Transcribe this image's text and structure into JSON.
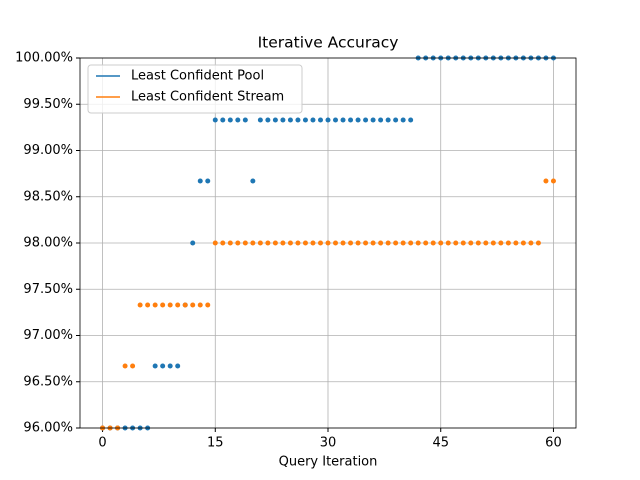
{
  "chart_data": {
    "type": "line",
    "title": "Iterative Accuracy",
    "xlabel": "Query Iteration",
    "x": [
      0,
      1,
      2,
      3,
      4,
      5,
      6,
      7,
      8,
      9,
      10,
      11,
      12,
      13,
      14,
      15,
      16,
      17,
      18,
      19,
      20,
      21,
      22,
      23,
      24,
      25,
      26,
      27,
      28,
      29,
      30,
      31,
      32,
      33,
      34,
      35,
      36,
      37,
      38,
      39,
      40,
      41,
      42,
      43,
      44,
      45,
      46,
      47,
      48,
      49,
      50,
      51,
      52,
      53,
      54,
      55,
      56,
      57,
      58,
      59,
      60
    ],
    "series": [
      {
        "name": "Least Confident Pool",
        "color": "#1f77b4",
        "values": [
          96,
          96,
          96,
          96,
          96,
          96,
          96,
          96.67,
          96.67,
          96.67,
          96.67,
          97.33,
          98,
          98.67,
          98.67,
          99.33,
          99.33,
          99.33,
          99.33,
          99.33,
          98.67,
          99.33,
          99.33,
          99.33,
          99.33,
          99.33,
          99.33,
          99.33,
          99.33,
          99.33,
          99.33,
          99.33,
          99.33,
          99.33,
          99.33,
          99.33,
          99.33,
          99.33,
          99.33,
          99.33,
          99.33,
          99.33,
          100,
          100,
          100,
          100,
          100,
          100,
          100,
          100,
          100,
          100,
          100,
          100,
          100,
          100,
          100,
          100,
          100,
          100,
          100
        ]
      },
      {
        "name": "Least Confident Stream",
        "color": "#ff7f0e",
        "values": [
          96,
          96,
          96,
          96.67,
          96.67,
          97.33,
          97.33,
          97.33,
          97.33,
          97.33,
          97.33,
          97.33,
          97.33,
          97.33,
          97.33,
          98,
          98,
          98,
          98,
          98,
          98,
          98,
          98,
          98,
          98,
          98,
          98,
          98,
          98,
          98,
          98,
          98,
          98,
          98,
          98,
          98,
          98,
          98,
          98,
          98,
          98,
          98,
          98,
          98,
          98,
          98,
          98,
          98,
          98,
          98,
          98,
          98,
          98,
          98,
          98,
          98,
          98,
          98,
          98,
          98.67,
          98.67
        ]
      }
    ],
    "xlim": [
      -3,
      63
    ],
    "xticks": [
      0,
      15,
      30,
      45,
      60
    ],
    "ylim": [
      96,
      100
    ],
    "yticks": [
      {
        "value": 96,
        "label": "96.00%"
      },
      {
        "value": 96.5,
        "label": "96.50%"
      },
      {
        "value": 97,
        "label": "97.00%"
      },
      {
        "value": 97.5,
        "label": "97.50%"
      },
      {
        "value": 98,
        "label": "98.00%"
      },
      {
        "value": 98.5,
        "label": "98.50%"
      },
      {
        "value": 99,
        "label": "99.00%"
      },
      {
        "value": 99.5,
        "label": "99.50%"
      },
      {
        "value": 100,
        "label": "100.00%"
      }
    ],
    "grid": true,
    "legend": "upper-left"
  }
}
